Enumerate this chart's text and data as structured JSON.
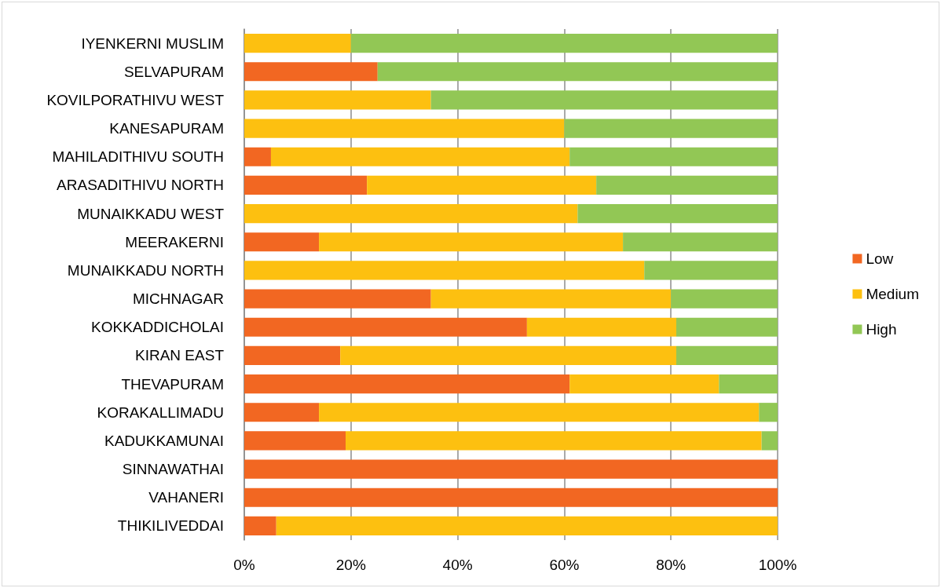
{
  "chart_data": {
    "type": "bar",
    "orientation": "horizontal",
    "stacked": true,
    "grid": "x",
    "legend": "right",
    "categories": [
      "IYENKERNI MUSLIM",
      "SELVAPURAM",
      "KOVILPORATHIVU WEST",
      "KANESAPURAM",
      "MAHILADITHIVU SOUTH",
      "ARASADITHIVU NORTH",
      "MUNAIKKADU WEST",
      "MEERAKERNI",
      "MUNAIKKADU NORTH",
      "MICHNAGAR",
      "KOKKADDICHOLAI",
      "KIRAN EAST",
      "THEVAPURAM",
      "KORAKALLIMADU",
      "KADUKKAMUNAI",
      "SINNAWATHAI",
      "VAHANERI",
      "THIKILIVEDDAI"
    ],
    "series": [
      {
        "name": "Low",
        "color": "#f26722",
        "values": [
          0,
          25,
          0,
          0,
          5,
          23,
          0,
          14,
          0,
          35,
          53,
          18,
          61,
          14,
          19,
          100,
          100,
          6
        ]
      },
      {
        "name": "Medium",
        "color": "#fdc010",
        "values": [
          20,
          0,
          35,
          60,
          56,
          43,
          62.5,
          57,
          75,
          45,
          28,
          63,
          28,
          82.5,
          78,
          0,
          0,
          94
        ]
      },
      {
        "name": "High",
        "color": "#92c755",
        "values": [
          80,
          75,
          65,
          40,
          39,
          34,
          37.5,
          29,
          25,
          20,
          19,
          19,
          11,
          3.5,
          3,
          0,
          0,
          0
        ]
      }
    ],
    "xlim": [
      0,
      100
    ],
    "xticks": [
      {
        "value": 0,
        "label": "0%"
      },
      {
        "value": 20,
        "label": "20%"
      },
      {
        "value": 40,
        "label": "40%"
      },
      {
        "value": 60,
        "label": "60%"
      },
      {
        "value": 80,
        "label": "80%"
      },
      {
        "value": 100,
        "label": "100%"
      }
    ]
  }
}
